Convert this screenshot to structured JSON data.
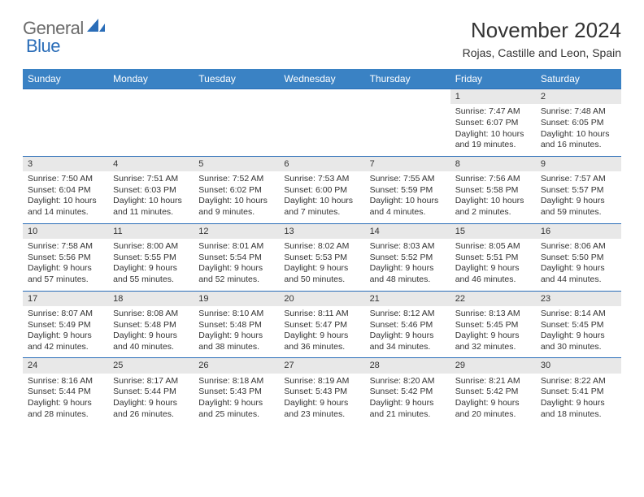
{
  "brand": {
    "part1": "General",
    "part2": "Blue"
  },
  "title": "November 2024",
  "subtitle": "Rojas, Castille and Leon, Spain",
  "colors": {
    "header_bg": "#3a82c4",
    "header_fg": "#ffffff",
    "border": "#2a6db8",
    "daynum_bg": "#e8e8e8",
    "logo_gray": "#6b6b6b",
    "logo_blue": "#2a6db8",
    "page_bg": "#ffffff",
    "text": "#333333"
  },
  "weekdays": [
    "Sunday",
    "Monday",
    "Tuesday",
    "Wednesday",
    "Thursday",
    "Friday",
    "Saturday"
  ],
  "first_weekday_index": 5,
  "days": [
    {
      "n": 1,
      "sunrise": "7:47 AM",
      "sunset": "6:07 PM",
      "daylight": "10 hours and 19 minutes."
    },
    {
      "n": 2,
      "sunrise": "7:48 AM",
      "sunset": "6:05 PM",
      "daylight": "10 hours and 16 minutes."
    },
    {
      "n": 3,
      "sunrise": "7:50 AM",
      "sunset": "6:04 PM",
      "daylight": "10 hours and 14 minutes."
    },
    {
      "n": 4,
      "sunrise": "7:51 AM",
      "sunset": "6:03 PM",
      "daylight": "10 hours and 11 minutes."
    },
    {
      "n": 5,
      "sunrise": "7:52 AM",
      "sunset": "6:02 PM",
      "daylight": "10 hours and 9 minutes."
    },
    {
      "n": 6,
      "sunrise": "7:53 AM",
      "sunset": "6:00 PM",
      "daylight": "10 hours and 7 minutes."
    },
    {
      "n": 7,
      "sunrise": "7:55 AM",
      "sunset": "5:59 PM",
      "daylight": "10 hours and 4 minutes."
    },
    {
      "n": 8,
      "sunrise": "7:56 AM",
      "sunset": "5:58 PM",
      "daylight": "10 hours and 2 minutes."
    },
    {
      "n": 9,
      "sunrise": "7:57 AM",
      "sunset": "5:57 PM",
      "daylight": "9 hours and 59 minutes."
    },
    {
      "n": 10,
      "sunrise": "7:58 AM",
      "sunset": "5:56 PM",
      "daylight": "9 hours and 57 minutes."
    },
    {
      "n": 11,
      "sunrise": "8:00 AM",
      "sunset": "5:55 PM",
      "daylight": "9 hours and 55 minutes."
    },
    {
      "n": 12,
      "sunrise": "8:01 AM",
      "sunset": "5:54 PM",
      "daylight": "9 hours and 52 minutes."
    },
    {
      "n": 13,
      "sunrise": "8:02 AM",
      "sunset": "5:53 PM",
      "daylight": "9 hours and 50 minutes."
    },
    {
      "n": 14,
      "sunrise": "8:03 AM",
      "sunset": "5:52 PM",
      "daylight": "9 hours and 48 minutes."
    },
    {
      "n": 15,
      "sunrise": "8:05 AM",
      "sunset": "5:51 PM",
      "daylight": "9 hours and 46 minutes."
    },
    {
      "n": 16,
      "sunrise": "8:06 AM",
      "sunset": "5:50 PM",
      "daylight": "9 hours and 44 minutes."
    },
    {
      "n": 17,
      "sunrise": "8:07 AM",
      "sunset": "5:49 PM",
      "daylight": "9 hours and 42 minutes."
    },
    {
      "n": 18,
      "sunrise": "8:08 AM",
      "sunset": "5:48 PM",
      "daylight": "9 hours and 40 minutes."
    },
    {
      "n": 19,
      "sunrise": "8:10 AM",
      "sunset": "5:48 PM",
      "daylight": "9 hours and 38 minutes."
    },
    {
      "n": 20,
      "sunrise": "8:11 AM",
      "sunset": "5:47 PM",
      "daylight": "9 hours and 36 minutes."
    },
    {
      "n": 21,
      "sunrise": "8:12 AM",
      "sunset": "5:46 PM",
      "daylight": "9 hours and 34 minutes."
    },
    {
      "n": 22,
      "sunrise": "8:13 AM",
      "sunset": "5:45 PM",
      "daylight": "9 hours and 32 minutes."
    },
    {
      "n": 23,
      "sunrise": "8:14 AM",
      "sunset": "5:45 PM",
      "daylight": "9 hours and 30 minutes."
    },
    {
      "n": 24,
      "sunrise": "8:16 AM",
      "sunset": "5:44 PM",
      "daylight": "9 hours and 28 minutes."
    },
    {
      "n": 25,
      "sunrise": "8:17 AM",
      "sunset": "5:44 PM",
      "daylight": "9 hours and 26 minutes."
    },
    {
      "n": 26,
      "sunrise": "8:18 AM",
      "sunset": "5:43 PM",
      "daylight": "9 hours and 25 minutes."
    },
    {
      "n": 27,
      "sunrise": "8:19 AM",
      "sunset": "5:43 PM",
      "daylight": "9 hours and 23 minutes."
    },
    {
      "n": 28,
      "sunrise": "8:20 AM",
      "sunset": "5:42 PM",
      "daylight": "9 hours and 21 minutes."
    },
    {
      "n": 29,
      "sunrise": "8:21 AM",
      "sunset": "5:42 PM",
      "daylight": "9 hours and 20 minutes."
    },
    {
      "n": 30,
      "sunrise": "8:22 AM",
      "sunset": "5:41 PM",
      "daylight": "9 hours and 18 minutes."
    }
  ],
  "labels": {
    "sunrise": "Sunrise:",
    "sunset": "Sunset:",
    "daylight": "Daylight:"
  }
}
